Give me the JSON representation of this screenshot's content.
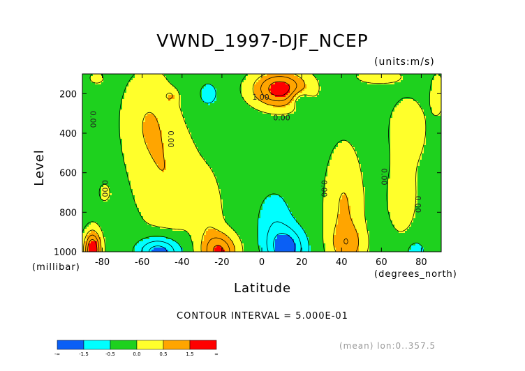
{
  "chart_data": {
    "type": "contour",
    "title": "VWND_1997-DJF_NCEP",
    "units_label": "(units:m/s)",
    "ylabel": "Level",
    "yunit_label": "(millibar)",
    "xlabel": "Latitude",
    "xunit_label": "(degrees_north)",
    "xlim": [
      -90,
      90
    ],
    "ylim": [
      1000,
      100
    ],
    "x_ticks": [
      -80,
      -60,
      -40,
      -20,
      0,
      20,
      40,
      60,
      80
    ],
    "y_ticks": [
      200,
      400,
      600,
      800,
      1000
    ],
    "x_tick_labels": [
      "-80",
      "-60",
      "-40",
      "-20",
      "0",
      "20",
      "40",
      "60",
      "80"
    ],
    "y_tick_labels": [
      "200",
      "400",
      "600",
      "800",
      "1000"
    ],
    "contour_interval_text": "CONTOUR INTERVAL = 5.000E-01",
    "mean_text": "(mean) lon:0..357.5",
    "contour_labels": [
      {
        "text": "1.00",
        "lat": -0.5,
        "level": 230
      },
      {
        "text": "0.00",
        "lat": 10,
        "level": 335
      },
      {
        "text": "0.00",
        "lat": -86,
        "level": 330
      },
      {
        "text": "0.00",
        "lat": -47,
        "level": 430
      },
      {
        "text": "0.00",
        "lat": -80,
        "level": 680
      },
      {
        "text": "0.00",
        "lat": 30,
        "level": 680
      },
      {
        "text": "0.00",
        "lat": 60,
        "level": 620
      },
      {
        "text": "0.00",
        "lat": 77,
        "level": 760
      }
    ],
    "levels": [
      -1.5,
      -0.5,
      0.0,
      0.5,
      1.5
    ],
    "legend": {
      "colors": [
        "#0a5ff5",
        "#00ffff",
        "#1ed11e",
        "#ffff2b",
        "#ffa500",
        "#ff0000"
      ],
      "labels": [
        "-∞",
        "-1.5",
        "-0.5",
        "0.0",
        "0.5",
        "1.5",
        "∞"
      ]
    },
    "palette": {
      "blue": "#0a5ff5",
      "cyan": "#00ffff",
      "green": "#1ed11e",
      "yellow": "#ffff2b",
      "orange": "#ffa500",
      "red": "#ff0000"
    }
  }
}
